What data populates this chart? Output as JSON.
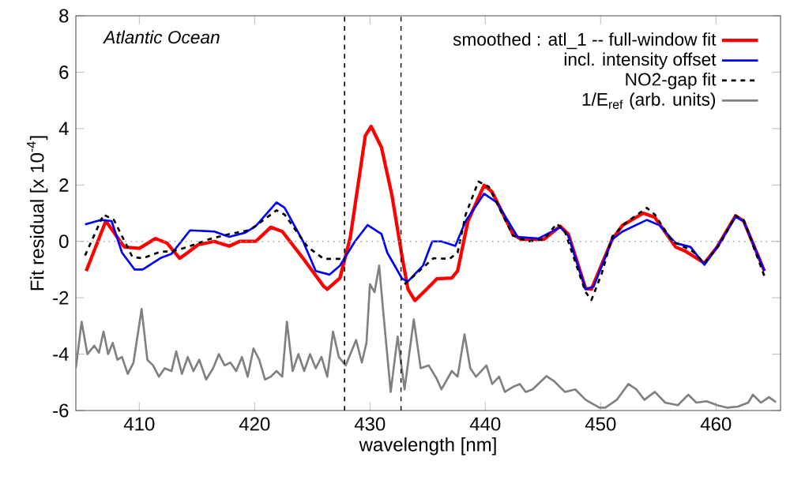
{
  "chart_data": {
    "type": "line",
    "xlabel": "wavelength  [nm]",
    "ylabel": "Fit residual  [x 10$^{-4}$]",
    "annotations": [
      "Atlantic Ocean"
    ],
    "xlim": [
      404.5,
      465.6
    ],
    "xticks": [
      410,
      420,
      430,
      440,
      450,
      460
    ],
    "ylim": [
      -6,
      8
    ],
    "yticks": [
      -6,
      -4,
      -2,
      0,
      2,
      4,
      6,
      8
    ],
    "legend": "top right",
    "marker": "none",
    "ref_lines": [
      {
        "axis": "x",
        "value": 427.8,
        "color": "#000000",
        "line_style": "dashed"
      },
      {
        "axis": "x",
        "value": 432.7,
        "color": "#000000",
        "line_style": "dashed"
      },
      {
        "axis": "y",
        "value": 0,
        "color": "#a0a0a0",
        "line_style": "dotted"
      }
    ],
    "series": [
      {
        "name": "smoothed : atl_1  --  full-window fit",
        "color": "#ff0000",
        "line_style": "solid",
        "x": [
          405.4,
          407.1,
          408.7,
          410.0,
          411.4,
          412.4,
          413.5,
          414.2,
          415.1,
          416.5,
          417.8,
          418.7,
          420.1,
          421.4,
          422.4,
          424.2,
          426.0,
          426.3,
          427.4,
          428.3,
          429.6,
          430.1,
          431.0,
          431.9,
          432.8,
          433.3,
          433.9,
          434.9,
          435.8,
          437.1,
          437.6,
          438.5,
          439.9,
          440.6,
          442.4,
          443.1,
          445.1,
          446.5,
          447.2,
          448.7,
          449.2,
          451.0,
          451.9,
          453.7,
          454.7,
          456.5,
          457.4,
          459.0,
          460.1,
          461.7,
          462.4,
          464.2
        ],
        "values": [
          -1.05,
          0.72,
          -0.2,
          -0.25,
          0.1,
          -0.06,
          -0.6,
          -0.4,
          -0.12,
          0,
          -0.17,
          0,
          0,
          0.5,
          0.35,
          -0.6,
          -1.6,
          -1.7,
          -1.3,
          0.15,
          3.75,
          4.08,
          3.33,
          1.65,
          -0.58,
          -1.7,
          -2.1,
          -1.7,
          -1.33,
          -1.3,
          -1.05,
          0.72,
          1.99,
          1.75,
          0.26,
          0.07,
          0.07,
          0.54,
          0.26,
          -1.67,
          -1.7,
          0.07,
          0.57,
          1.0,
          0.85,
          -0.2,
          -0.36,
          -0.77,
          -0.2,
          0.91,
          0.72,
          -1.05
        ]
      },
      {
        "name": "incl. intensity offset",
        "color": "#0000ff",
        "line_style": "solid",
        "x": [
          405.3,
          406.7,
          407.6,
          408.5,
          409.6,
          410.3,
          411.9,
          412.8,
          414.4,
          416.5,
          417.8,
          419.2,
          420.1,
          421.9,
          422.6,
          424.2,
          425.3,
          426.5,
          427.4,
          428.7,
          429.8,
          431.0,
          431.5,
          432.8,
          433.3,
          434.6,
          435.4,
          436.2,
          437.4,
          438.3,
          439.9,
          441.0,
          442.8,
          444.6,
          446.5,
          447.2,
          448.7,
          449.4,
          451.0,
          451.9,
          454.0,
          455.1,
          456.5,
          457.8,
          459.0,
          460.1,
          461.7,
          462.4,
          464.2
        ],
        "values": [
          0.6,
          0.76,
          0.72,
          -0.4,
          -1.0,
          -1.0,
          -0.58,
          -0.44,
          0.39,
          0.35,
          0.16,
          0.31,
          0.54,
          1.38,
          1.19,
          0,
          -1.05,
          -1.18,
          -0.86,
          0,
          0.58,
          0.26,
          -0.4,
          -1.33,
          -1.42,
          -0.86,
          0,
          0,
          -0.16,
          0.72,
          1.69,
          1.38,
          0.16,
          0.1,
          0.5,
          0.2,
          -1.7,
          -1.6,
          0.07,
          0.35,
          0.76,
          0.57,
          -0.06,
          -0.2,
          -0.83,
          -0.2,
          0.87,
          0.72,
          -1.05
        ]
      },
      {
        "name": "NO2-gap fit",
        "color": "#000000",
        "line_style": "dashed",
        "x": [
          405.3,
          406.9,
          407.8,
          409.4,
          410.3,
          411.9,
          412.8,
          414.2,
          416.0,
          417.8,
          419.6,
          421.9,
          422.6,
          424.6,
          426.0,
          427.6,
          430.0,
          433.0,
          435.5,
          436.9,
          437.6,
          438.3,
          439.4,
          440.3,
          442.4,
          443.7,
          445.1,
          446.2,
          446.9,
          448.7,
          449.2,
          450.1,
          451.0,
          452.1,
          454.0,
          454.7,
          456.2,
          458.0,
          459.0,
          460.3,
          461.7,
          462.4,
          464.2
        ],
        "values": [
          -0.5,
          0.95,
          0.76,
          -0.55,
          -0.6,
          -0.36,
          -0.36,
          -0.2,
          0.07,
          0.26,
          0.4,
          1.1,
          0.95,
          -0.2,
          -0.62,
          -0.62,
          null,
          -1.52,
          -0.6,
          -0.62,
          -0.4,
          0.95,
          2.12,
          1.94,
          0.2,
          0,
          0.07,
          0.63,
          0.35,
          -1.8,
          -2.08,
          -1.14,
          0.16,
          0.63,
          1.19,
          0.95,
          0.01,
          -0.36,
          -0.77,
          -0.12,
          0.91,
          0.76,
          -1.23
        ]
      },
      {
        "name": "1/E$_{ref}$ (arb. units)",
        "color": "#808080",
        "line_style": "solid",
        "x": [
          404.5,
          405.0,
          405.5,
          406.1,
          406.5,
          406.9,
          407.3,
          407.7,
          408.1,
          408.5,
          409.0,
          409.5,
          410.2,
          410.7,
          411.2,
          411.7,
          412.2,
          412.8,
          413.2,
          413.7,
          414.2,
          414.7,
          415.2,
          415.8,
          416.4,
          416.9,
          417.4,
          417.9,
          418.4,
          418.9,
          419.4,
          419.9,
          420.4,
          420.9,
          421.4,
          421.9,
          422.4,
          422.8,
          423.3,
          423.8,
          424.3,
          424.8,
          425.3,
          425.8,
          426.3,
          426.8,
          427.3,
          427.9,
          428.8,
          429.3,
          429.7,
          430.0,
          430.4,
          430.8,
          431.1,
          431.8,
          432.4,
          433.0,
          433.8,
          434.4,
          435.1,
          435.8,
          436.2,
          437.1,
          437.6,
          438.2,
          438.7,
          439.2,
          440.1,
          440.6,
          441.2,
          441.7,
          442.4,
          443.0,
          443.5,
          444.1,
          445.3,
          446.0,
          446.9,
          447.8,
          448.7,
          449.9,
          450.4,
          451.4,
          452.4,
          453.1,
          453.8,
          454.7,
          455.6,
          456.7,
          457.6,
          458.3,
          459.2,
          460.1,
          461.0,
          461.9,
          462.8,
          463.2,
          463.9,
          464.6,
          465.2
        ],
        "values": [
          -4.5,
          -2.85,
          -4.0,
          -3.7,
          -3.95,
          -3.2,
          -4.0,
          -3.6,
          -4.2,
          -4.1,
          -4.7,
          -4.3,
          -2.4,
          -4.2,
          -4.4,
          -4.8,
          -4.5,
          -4.6,
          -3.9,
          -4.7,
          -4.1,
          -4.6,
          -4.2,
          -4.9,
          -4.5,
          -4.0,
          -4.4,
          -4.3,
          -4.6,
          -4.1,
          -4.8,
          -3.8,
          -4.2,
          -4.9,
          -4.8,
          -4.6,
          -4.8,
          -2.85,
          -4.6,
          -4.0,
          -4.6,
          -4.0,
          -4.5,
          -4.1,
          -4.8,
          -3.2,
          -4.1,
          -4.4,
          -3.5,
          -4.3,
          -3.6,
          -1.52,
          -1.8,
          -0.86,
          -2.26,
          -5.34,
          -3.38,
          -5.25,
          -2.77,
          -4.5,
          -4.4,
          -4.88,
          -5.25,
          -4.6,
          -4.8,
          -3.3,
          -4.5,
          -4.8,
          -4.4,
          -5.06,
          -4.8,
          -5.34,
          -5.16,
          -5.06,
          -5.34,
          -5.25,
          -4.78,
          -4.97,
          -5.34,
          -5.25,
          -5.62,
          -5.9,
          -5.9,
          -5.62,
          -5.06,
          -5.25,
          -5.62,
          -5.34,
          -5.72,
          -5.81,
          -5.44,
          -5.72,
          -5.67,
          -5.81,
          -5.9,
          -5.86,
          -5.72,
          -5.44,
          -5.72,
          -5.53,
          -5.7
        ]
      }
    ]
  }
}
